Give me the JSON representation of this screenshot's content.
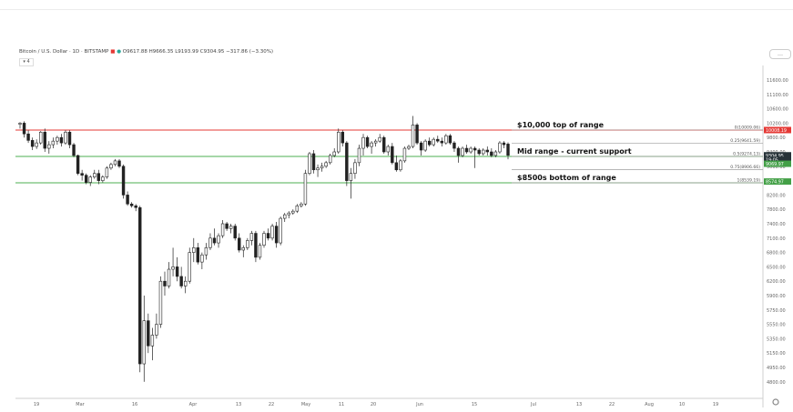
{
  "header": {
    "symbol": "Bitcoin / U.S. Dollar · 1D · BITSTAMP",
    "ohlc": "O9617.88 H9666.35 L9193.99 C9304.95 −317.86 (−3.30%)",
    "collapse_label": "▾ 4",
    "settings_label": "…"
  },
  "chart_data": {
    "type": "candlestick",
    "x_ticks": [
      "19",
      "Mar",
      "16",
      "Apr",
      "13",
      "22",
      "May",
      "11",
      "20",
      "Jun",
      "15",
      "Jul",
      "13",
      "22",
      "Aug",
      "10",
      "19"
    ],
    "y_ticks": [
      11600,
      11100,
      10600,
      10200,
      9800,
      9400,
      9000,
      8600,
      8200,
      7800,
      7400,
      7100,
      6800,
      6500,
      6200,
      5900,
      5750,
      5550,
      5350,
      5150,
      4950,
      4800
    ],
    "y_tick_labels": [
      "11600.00",
      "11100.00",
      "10600.00",
      "10200.00",
      "9800.00",
      "9400.00",
      "9000.00",
      "8600.00",
      "8200.00",
      "7800.00",
      "7400.00",
      "7100.00",
      "6800.00",
      "6500.00",
      "6200.00",
      "5900.00",
      "5750.00",
      "5550.00",
      "5350.00",
      "5150.00",
      "4950.00",
      "4800.00"
    ],
    "fib_levels": [
      {
        "label": "0(10009.06)",
        "value": 10009.06
      },
      {
        "label": "0.25(9641.59)",
        "value": 9641.59
      },
      {
        "label": "0.5(9274.13)",
        "value": 9274.13
      },
      {
        "label": "0.75(8906.66)",
        "value": 8906.66
      },
      {
        "label": "1(8539.19)",
        "value": 8539.19
      }
    ],
    "range_lines": [
      {
        "value": 10009.06,
        "color": "#e53935"
      },
      {
        "value": 9274.13,
        "color": "#4caf50"
      },
      {
        "value": 8539.19,
        "color": "#4caf50"
      }
    ],
    "annotations": [
      {
        "text": "$10,000 top of range",
        "value": 10009.06
      },
      {
        "text": "Mid range - current support",
        "value": 9274.13
      },
      {
        "text": "$8500s bottom of range",
        "value": 8539.19
      }
    ],
    "price_badges": [
      {
        "text": "10008.19",
        "value": 10008.19,
        "color": "#e53935"
      },
      {
        "text": "9304.95",
        "value": 9304.95,
        "color": "#263238"
      },
      {
        "text": "19:05",
        "value": 9180,
        "color": "#263238"
      },
      {
        "text": "9069.97",
        "value": 9069.97,
        "color": "#43a047"
      },
      {
        "text": "8574.97",
        "value": 8574.97,
        "color": "#43a047"
      }
    ],
    "candles": [
      [
        10170,
        10230,
        10050,
        10200
      ],
      [
        10200,
        10250,
        9800,
        9900
      ],
      [
        9900,
        10000,
        9650,
        9720
      ],
      [
        9720,
        9800,
        9450,
        9550
      ],
      [
        9550,
        9750,
        9480,
        9650
      ],
      [
        9650,
        9980,
        9600,
        9950
      ],
      [
        9950,
        10050,
        9400,
        9500
      ],
      [
        9500,
        9700,
        9350,
        9600
      ],
      [
        9600,
        9800,
        9500,
        9700
      ],
      [
        9700,
        9850,
        9600,
        9800
      ],
      [
        9800,
        9900,
        9550,
        9650
      ],
      [
        9650,
        10000,
        9600,
        9950
      ],
      [
        9950,
        10000,
        9500,
        9600
      ],
      [
        9600,
        9650,
        9250,
        9300
      ],
      [
        9300,
        9320,
        8750,
        8800
      ],
      [
        8800,
        8900,
        8600,
        8750
      ],
      [
        8750,
        8800,
        8500,
        8550
      ],
      [
        8550,
        8750,
        8450,
        8700
      ],
      [
        8700,
        8900,
        8650,
        8800
      ],
      [
        8800,
        8900,
        8500,
        8600
      ],
      [
        8600,
        8750,
        8550,
        8700
      ],
      [
        8700,
        9000,
        8650,
        8950
      ],
      [
        8950,
        9100,
        8900,
        9050
      ],
      [
        9050,
        9200,
        9000,
        9150
      ],
      [
        9150,
        9200,
        8950,
        9000
      ],
      [
        9000,
        9050,
        8100,
        8200
      ],
      [
        8200,
        8300,
        7900,
        7950
      ],
      [
        7950,
        8000,
        7850,
        7900
      ],
      [
        7900,
        7950,
        7750,
        7850
      ],
      [
        7850,
        7900,
        4900,
        5000
      ],
      [
        5000,
        5900,
        4800,
        5600
      ],
      [
        5600,
        5700,
        5150,
        5250
      ],
      [
        5250,
        5500,
        5050,
        5400
      ],
      [
        5400,
        5700,
        5350,
        5550
      ],
      [
        5550,
        6300,
        5500,
        6200
      ],
      [
        6200,
        6400,
        5900,
        6100
      ],
      [
        6100,
        6600,
        6050,
        6450
      ],
      [
        6450,
        6900,
        6300,
        6500
      ],
      [
        6500,
        6700,
        6200,
        6300
      ],
      [
        6300,
        6500,
        6050,
        6100
      ],
      [
        6100,
        6300,
        5950,
        6200
      ],
      [
        6200,
        6900,
        6150,
        6800
      ],
      [
        6800,
        7100,
        6600,
        6900
      ],
      [
        6900,
        7000,
        6550,
        6600
      ],
      [
        6600,
        6800,
        6450,
        6750
      ],
      [
        6750,
        7000,
        6650,
        6900
      ],
      [
        6900,
        7200,
        6850,
        7100
      ],
      [
        7100,
        7300,
        6950,
        7000
      ],
      [
        7000,
        7200,
        6900,
        7150
      ],
      [
        7150,
        7500,
        7100,
        7400
      ],
      [
        7400,
        7450,
        7250,
        7300
      ],
      [
        7300,
        7400,
        7200,
        7350
      ],
      [
        7350,
        7400,
        7050,
        7100
      ],
      [
        7100,
        7200,
        6800,
        6850
      ],
      [
        6850,
        6950,
        6700,
        6900
      ],
      [
        6900,
        7100,
        6850,
        7050
      ],
      [
        7050,
        7250,
        6950,
        7200
      ],
      [
        7200,
        7250,
        6600,
        6700
      ],
      [
        6700,
        7000,
        6650,
        6950
      ],
      [
        6950,
        7250,
        6900,
        7200
      ],
      [
        7200,
        7300,
        7050,
        7100
      ],
      [
        7100,
        7400,
        7050,
        7350
      ],
      [
        7350,
        7450,
        6900,
        7000
      ],
      [
        7000,
        7600,
        6950,
        7550
      ],
      [
        7550,
        7700,
        7450,
        7650
      ],
      [
        7650,
        7750,
        7550,
        7700
      ],
      [
        7700,
        7800,
        7650,
        7750
      ],
      [
        7750,
        7950,
        7700,
        7900
      ],
      [
        7900,
        8000,
        7850,
        7950
      ],
      [
        7950,
        8900,
        7900,
        8800
      ],
      [
        8800,
        9400,
        8750,
        9350
      ],
      [
        9350,
        9450,
        8800,
        8900
      ],
      [
        8900,
        9050,
        8700,
        8950
      ],
      [
        8950,
        9100,
        8850,
        9000
      ],
      [
        9000,
        9150,
        8950,
        9100
      ],
      [
        9100,
        9350,
        9050,
        9300
      ],
      [
        9300,
        9500,
        9250,
        9400
      ],
      [
        9400,
        10050,
        9350,
        9950
      ],
      [
        9950,
        10000,
        9550,
        9650
      ],
      [
        9650,
        9700,
        8450,
        8600
      ],
      [
        8600,
        8950,
        8100,
        8800
      ],
      [
        8800,
        9200,
        8650,
        9100
      ],
      [
        9100,
        9600,
        9000,
        9500
      ],
      [
        9500,
        9900,
        9300,
        9800
      ],
      [
        9800,
        9850,
        9500,
        9550
      ],
      [
        9550,
        9700,
        9350,
        9650
      ],
      [
        9650,
        9750,
        9550,
        9700
      ],
      [
        9700,
        9900,
        9650,
        9800
      ],
      [
        9800,
        9850,
        9350,
        9400
      ],
      [
        9400,
        9600,
        9300,
        9550
      ],
      [
        9550,
        9650,
        9050,
        9100
      ],
      [
        9100,
        9300,
        8850,
        8900
      ],
      [
        8900,
        9200,
        8850,
        9150
      ],
      [
        9150,
        9550,
        9100,
        9500
      ],
      [
        9500,
        9600,
        9450,
        9550
      ],
      [
        9550,
        10400,
        9500,
        10150
      ],
      [
        10150,
        10200,
        9600,
        9650
      ],
      [
        9650,
        9700,
        9300,
        9450
      ],
      [
        9450,
        9750,
        9400,
        9700
      ],
      [
        9700,
        9800,
        9550,
        9600
      ],
      [
        9600,
        9800,
        9550,
        9750
      ],
      [
        9750,
        9850,
        9650,
        9700
      ],
      [
        9700,
        9800,
        9550,
        9650
      ],
      [
        9650,
        9900,
        9600,
        9850
      ],
      [
        9850,
        9900,
        9600,
        9650
      ],
      [
        9650,
        9700,
        9400,
        9500
      ],
      [
        9500,
        9550,
        9100,
        9300
      ],
      [
        9300,
        9550,
        9250,
        9500
      ],
      [
        9500,
        9600,
        9350,
        9400
      ],
      [
        9400,
        9550,
        9350,
        9500
      ],
      [
        9500,
        9550,
        8950,
        9450
      ],
      [
        9450,
        9500,
        9300,
        9350
      ],
      [
        9350,
        9500,
        9300,
        9450
      ],
      [
        9450,
        9550,
        9300,
        9400
      ],
      [
        9400,
        9500,
        9250,
        9300
      ],
      [
        9300,
        9450,
        9250,
        9400
      ],
      [
        9400,
        9700,
        9350,
        9650
      ],
      [
        9650,
        9700,
        9500,
        9600
      ],
      [
        9617.88,
        9666.35,
        9193.99,
        9304.95
      ]
    ]
  }
}
